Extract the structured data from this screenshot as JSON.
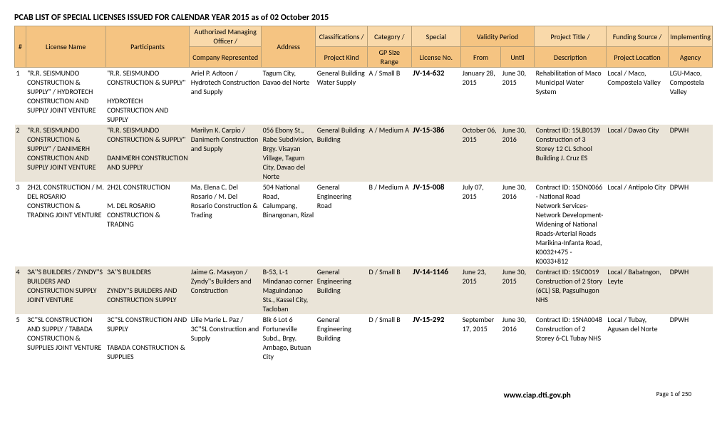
{
  "title": "PCAB LIST OF SPECIAL LICENSES ISSUED FOR CALENDAR YEAR 2015 as of 02 October 2015",
  "header_bg_1": "#f5c482",
  "header_bg_2": "#f9d9aa",
  "alt_row": "#eae4d8",
  "columns": {
    "num": "#",
    "license_name": "License Name",
    "participants": "Participants",
    "officer_top": "Authorized Managing Officer /",
    "officer_bot": "Company Represented",
    "address": "Address",
    "class_top": "Classifications /",
    "class_bot": "Project Kind",
    "cat_top": "Category /",
    "cat_bot": "GP Size Range",
    "special_top": "Special",
    "special_bot": "License No.",
    "validity": "Validity Period",
    "from": "From",
    "until": "Until",
    "proj_top": "Project Title /",
    "proj_bot": "Description",
    "fund_top": "Funding Source /",
    "fund_bot": "Project Location",
    "agency_top": "Implementing",
    "agency_bot": "Agency"
  },
  "rows": [
    {
      "num": "1",
      "license_name": "\"R.R. SEISMUNDO CONSTRUCTION & SUPPLY\" / HYDROTECH CONSTRUCTION AND SUPPLY JOINT VENTURE",
      "participants": "\"R.R. SEISMUNDO CONSTRUCTION & SUPPLY\"\n\nHYDROTECH CONSTRUCTION AND SUPPLY",
      "officer": "Ariel P. Adtoon / Hydrotech Construction and Supply",
      "address": "Tagum City, Davao del Norte",
      "class": "General Building Water Supply",
      "category": "A / Small B",
      "special": "JV-14-632",
      "from": "January 28, 2015",
      "until": "June 30, 2015",
      "project": "Rehabilitation of Maco Municipal Water System",
      "funding": "Local / Maco, Compostela Valley",
      "agency": "LGU-Maco, Compostela Valley"
    },
    {
      "num": "2",
      "license_name": "\"R.R. SEISMUNDO CONSTRUCTION & SUPPLY\" / DANIMERH CONSTRUCTION AND SUPPLY JOINT VENTURE",
      "participants": "\"R.R. SEISMUNDO CONSTRUCTION & SUPPLY\"\n\nDANIMERH CONSTRUCTION AND SUPPLY",
      "officer": "Marilyn K. Carpio / Danimerh Construction and Supply",
      "address": "056 Ebony St., Rabe Subdivision, Brgy. Visayan Village, Tagum City, Davao del Norte",
      "class": "General Building Building",
      "category": "A / Medium A",
      "special": "JV-15-386",
      "from": "October 06, 2015",
      "until": "June 30, 2016",
      "project": "Contract ID: 15LB0139 Construction of 3 Storey 12 CL School Building J. Cruz ES",
      "funding": "Local / Davao City",
      "agency": "DPWH"
    },
    {
      "num": "3",
      "license_name": "2H2L CONSTRUCTION / M. DEL ROSARIO CONSTRUCTION & TRADING JOINT VENTURE",
      "participants": "2H2L CONSTRUCTION\n\nM. DEL ROSARIO CONSTRUCTION & TRADING",
      "officer": "Ma. Elena C. Del Rosario / M. Del Rosario Construction & Trading",
      "address": "504 National Road, Calumpang, Binangonan, Rizal",
      "class": "General Engineering   Road",
      "category": "B / Medium A",
      "special": "JV-15-008",
      "from": "July 07, 2015",
      "until": "June 30, 2016",
      "project": "Contract ID: 15DN0066 - National Road Network Services-Network Development-Widening of National Roads-Arterial Roads Marikina-Infanta Road, K0032+475 - K0033+812",
      "funding": "Local / Antipolo City",
      "agency": "DPWH"
    },
    {
      "num": "4",
      "license_name": "3A''S BUILDERS / ZYNDY''S BUILDERS AND CONSTRUCTION SUPPLY JOINT VENTURE",
      "participants": "3A''S BUILDERS\n\nZYNDY''S BUILDERS AND CONSTRUCTION SUPPLY",
      "officer": "Jaime G. Masayon / Zyndy''s Builders and Construction",
      "address": "B-53,  L-1 Mindanao corner Maguindanao Sts., Kassel City, Tacloban",
      "class": "General Engineering Building",
      "category": "D / Small B",
      "special": "JV-14-1146",
      "from": "June 23, 2015",
      "until": "June 30, 2015",
      "project": "Contract ID: 15IC0019 Construction of 2 Story (6CL) SB, Pagsulhugon NHS",
      "funding": "Local / Babatngon, Leyte",
      "agency": "DPWH"
    },
    {
      "num": "5",
      "license_name": "3C''SL CONSTRUCTION AND SUPPLY / TABADA CONSTRUCTION & SUPPLIES JOINT VENTURE",
      "participants": "3C''SL CONSTRUCTION AND SUPPLY\n\nTABADA CONSTRUCTION & SUPPLIES",
      "officer": "Lilie Marie L. Paz / 3C''SL Construction and Supply",
      "address": "Blk 6 Lot 6 Fortuneville Subd., Brgy. Ambago, Butuan City",
      "class": "General Engineering Building",
      "category": "D / Small B",
      "special": "JV-15-292",
      "from": "September 17, 2015",
      "until": "June 30, 2016",
      "project": "Contract ID: 15NA0048 Construction of 2 Storey 6-CL Tubay NHS",
      "funding": "Local / Tubay, Agusan del Norte",
      "agency": "DPWH"
    }
  ],
  "footer": {
    "url": "www.ciap.dti.gov.ph",
    "page": "Page 1 of 250"
  }
}
